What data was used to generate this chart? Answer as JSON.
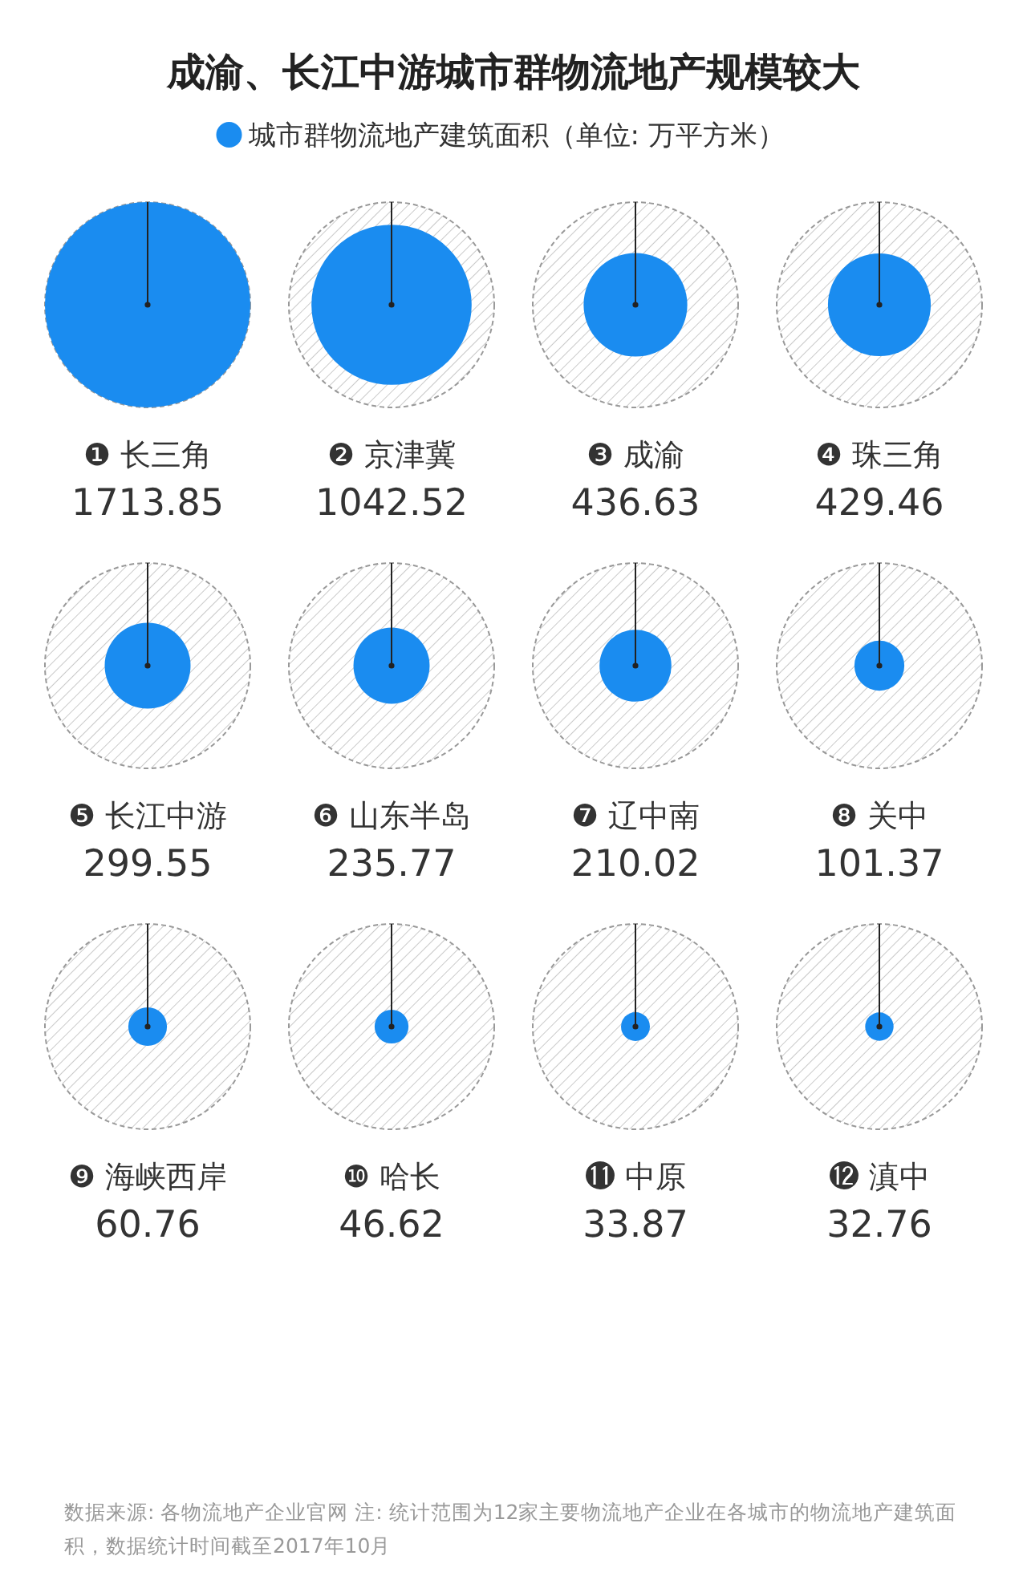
{
  "chart_data": {
    "type": "other",
    "title": "成渝、长江中游城市群物流地产规模较大",
    "categories": [
      "❶ 长三角",
      "❷ 京津冀",
      "❸ 成渝",
      "❹ 珠三角",
      "❺ 长江中游",
      "❻ 山东半岛",
      "❼ 辽中南",
      "❽ 关中",
      "❾ 海峡西岸",
      "❿ 哈长",
      "⓫ 中原",
      "⓬ 滇中"
    ],
    "series": [
      {
        "name": "城市群物流地产建筑面积（单位: 万平方米）",
        "color": "#1a8cf0",
        "values": [
          1713.85,
          1042.52,
          436.63,
          429.46,
          299.55,
          235.77,
          210.02,
          101.37,
          60.76,
          46.62,
          33.87,
          32.76
        ]
      }
    ],
    "data_labels": true,
    "legend": "top",
    "annotations": [
      "数据来源: 各物流地产企业官网  注: 统计范围为12家主要物流地产企业在各城市的物流地产建筑面积，数据统计时间截至2017年10月"
    ]
  }
}
